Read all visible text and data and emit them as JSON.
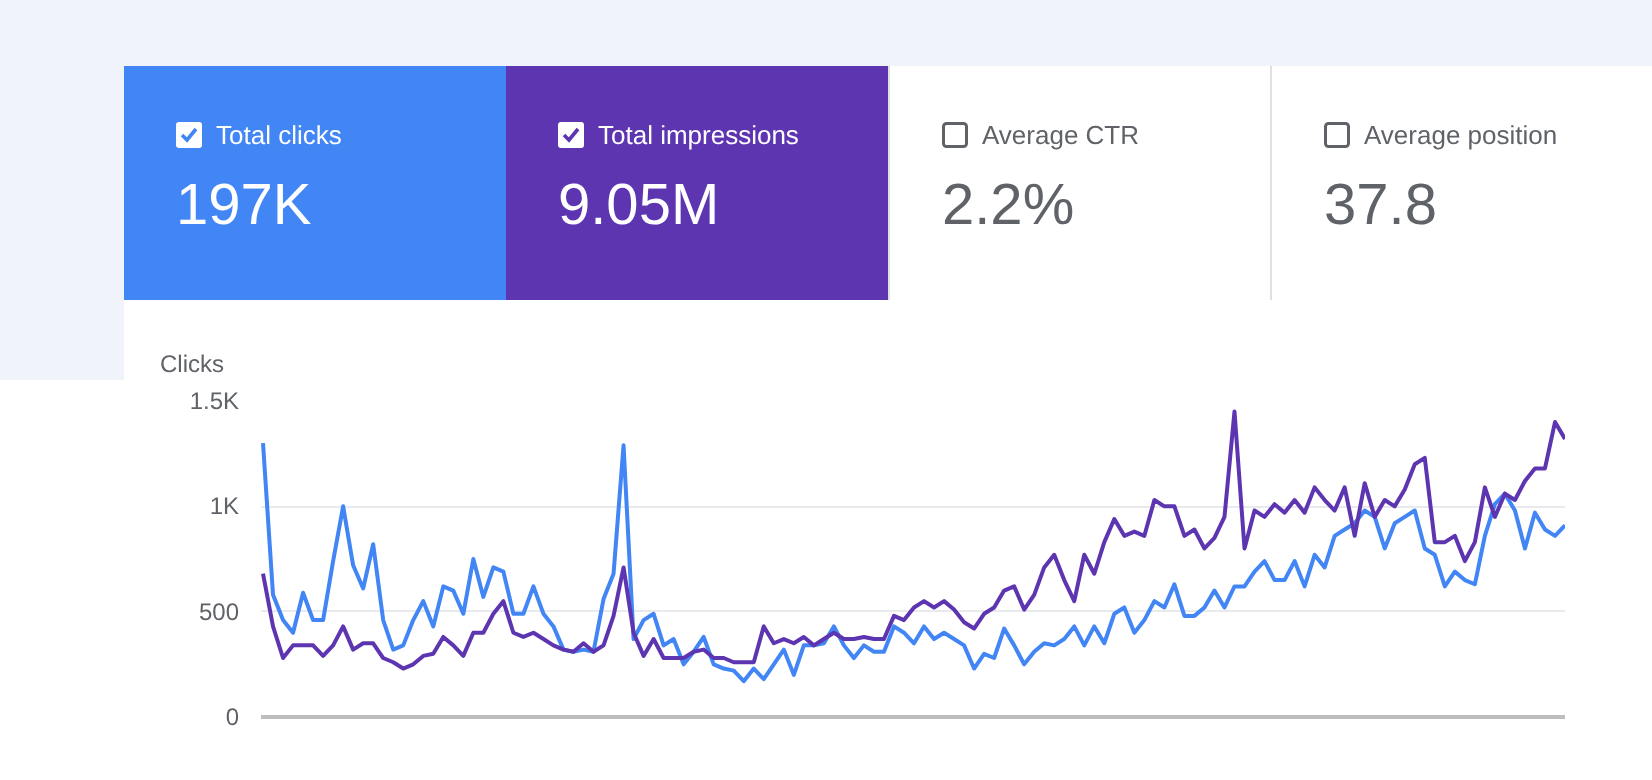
{
  "chart_data": {
    "type": "line",
    "ylabel": "Clicks",
    "ylim": [
      0,
      1500
    ],
    "categories": [
      null,
      null,
      null,
      null,
      null,
      null,
      null,
      null,
      null,
      null,
      null,
      null,
      null,
      null,
      null,
      null,
      null,
      null,
      null,
      null,
      null,
      null,
      null,
      null,
      null,
      null,
      null,
      null,
      null,
      null,
      null,
      null,
      null,
      null,
      null,
      null,
      null,
      null,
      null,
      null,
      null,
      null,
      null,
      null,
      null,
      null,
      null,
      null,
      null,
      null,
      null,
      null,
      null,
      null,
      null,
      null,
      null,
      null,
      null,
      null,
      null,
      null,
      null,
      null,
      null,
      null,
      null,
      null,
      null,
      null,
      null,
      null,
      null,
      null,
      null,
      null,
      null,
      null,
      null,
      null,
      null,
      null,
      null,
      null,
      null,
      null,
      null,
      null,
      null,
      null,
      null,
      null,
      null,
      null,
      null,
      null,
      null,
      null,
      null,
      null,
      null,
      null,
      null,
      null,
      null,
      null,
      null,
      null,
      null,
      null,
      null,
      null,
      null,
      null,
      null,
      null,
      null,
      null,
      null,
      null,
      null,
      null,
      null,
      null,
      null,
      null,
      null,
      null,
      null,
      null,
      null
    ],
    "yticks": [
      {
        "value": 0,
        "label": "0"
      },
      {
        "value": 500,
        "label": "500"
      },
      {
        "value": 1000,
        "label": "1K"
      },
      {
        "value": 1500,
        "label": "1.5K"
      }
    ],
    "grid": "y",
    "tick_labels": "y",
    "legend": "top",
    "marker": "none",
    "line_style": "solid",
    "annotations": [
      "197K",
      "9.05M",
      "Average CTR",
      "2.2%",
      "Average position",
      "37.8"
    ],
    "series": [
      {
        "name": "Total clicks",
        "color": "#4285f4",
        "values": [
          1300,
          580,
          460,
          400,
          590,
          460,
          460,
          740,
          1000,
          720,
          610,
          820,
          460,
          320,
          340,
          460,
          550,
          430,
          620,
          600,
          490,
          750,
          570,
          710,
          690,
          490,
          490,
          620,
          490,
          430,
          320,
          310,
          320,
          310,
          560,
          680,
          1290,
          370,
          460,
          490,
          340,
          370,
          250,
          310,
          380,
          250,
          230,
          220,
          170,
          230,
          180,
          250,
          320,
          200,
          340,
          340,
          350,
          430,
          340,
          280,
          340,
          310,
          310,
          430,
          400,
          350,
          430,
          370,
          400,
          370,
          340,
          230,
          300,
          280,
          420,
          340,
          250,
          310,
          350,
          340,
          370,
          430,
          340,
          430,
          350,
          490,
          520,
          400,
          460,
          550,
          520,
          630,
          480,
          480,
          520,
          600,
          520,
          620,
          620,
          690,
          740,
          650,
          650,
          740,
          620,
          770,
          710,
          860,
          890,
          920,
          980,
          950,
          800,
          920,
          950,
          980,
          800,
          770,
          620,
          690,
          650,
          630,
          860,
          1010,
          1060,
          980,
          800,
          970,
          890,
          860,
          910
        ]
      },
      {
        "name": "Total impressions",
        "color": "#5e35b1",
        "values": [
          680,
          430,
          280,
          340,
          340,
          340,
          290,
          340,
          430,
          320,
          350,
          350,
          280,
          260,
          230,
          250,
          290,
          300,
          380,
          340,
          290,
          400,
          400,
          490,
          550,
          400,
          380,
          400,
          370,
          340,
          320,
          310,
          350,
          310,
          340,
          480,
          710,
          400,
          290,
          370,
          280,
          280,
          280,
          310,
          320,
          280,
          280,
          260,
          260,
          260,
          430,
          350,
          370,
          350,
          380,
          340,
          370,
          400,
          370,
          370,
          380,
          370,
          370,
          480,
          460,
          520,
          550,
          520,
          550,
          510,
          450,
          420,
          490,
          520,
          600,
          620,
          510,
          580,
          710,
          770,
          650,
          550,
          770,
          680,
          830,
          940,
          860,
          880,
          860,
          1030,
          1000,
          1000,
          860,
          890,
          800,
          850,
          950,
          1450,
          800,
          980,
          950,
          1010,
          970,
          1030,
          970,
          1090,
          1030,
          980,
          1090,
          860,
          1110,
          950,
          1030,
          1000,
          1080,
          1200,
          1230,
          830,
          830,
          860,
          740,
          830,
          1090,
          950,
          1060,
          1030,
          1120,
          1180,
          1180,
          1400,
          1320
        ]
      }
    ]
  }
}
